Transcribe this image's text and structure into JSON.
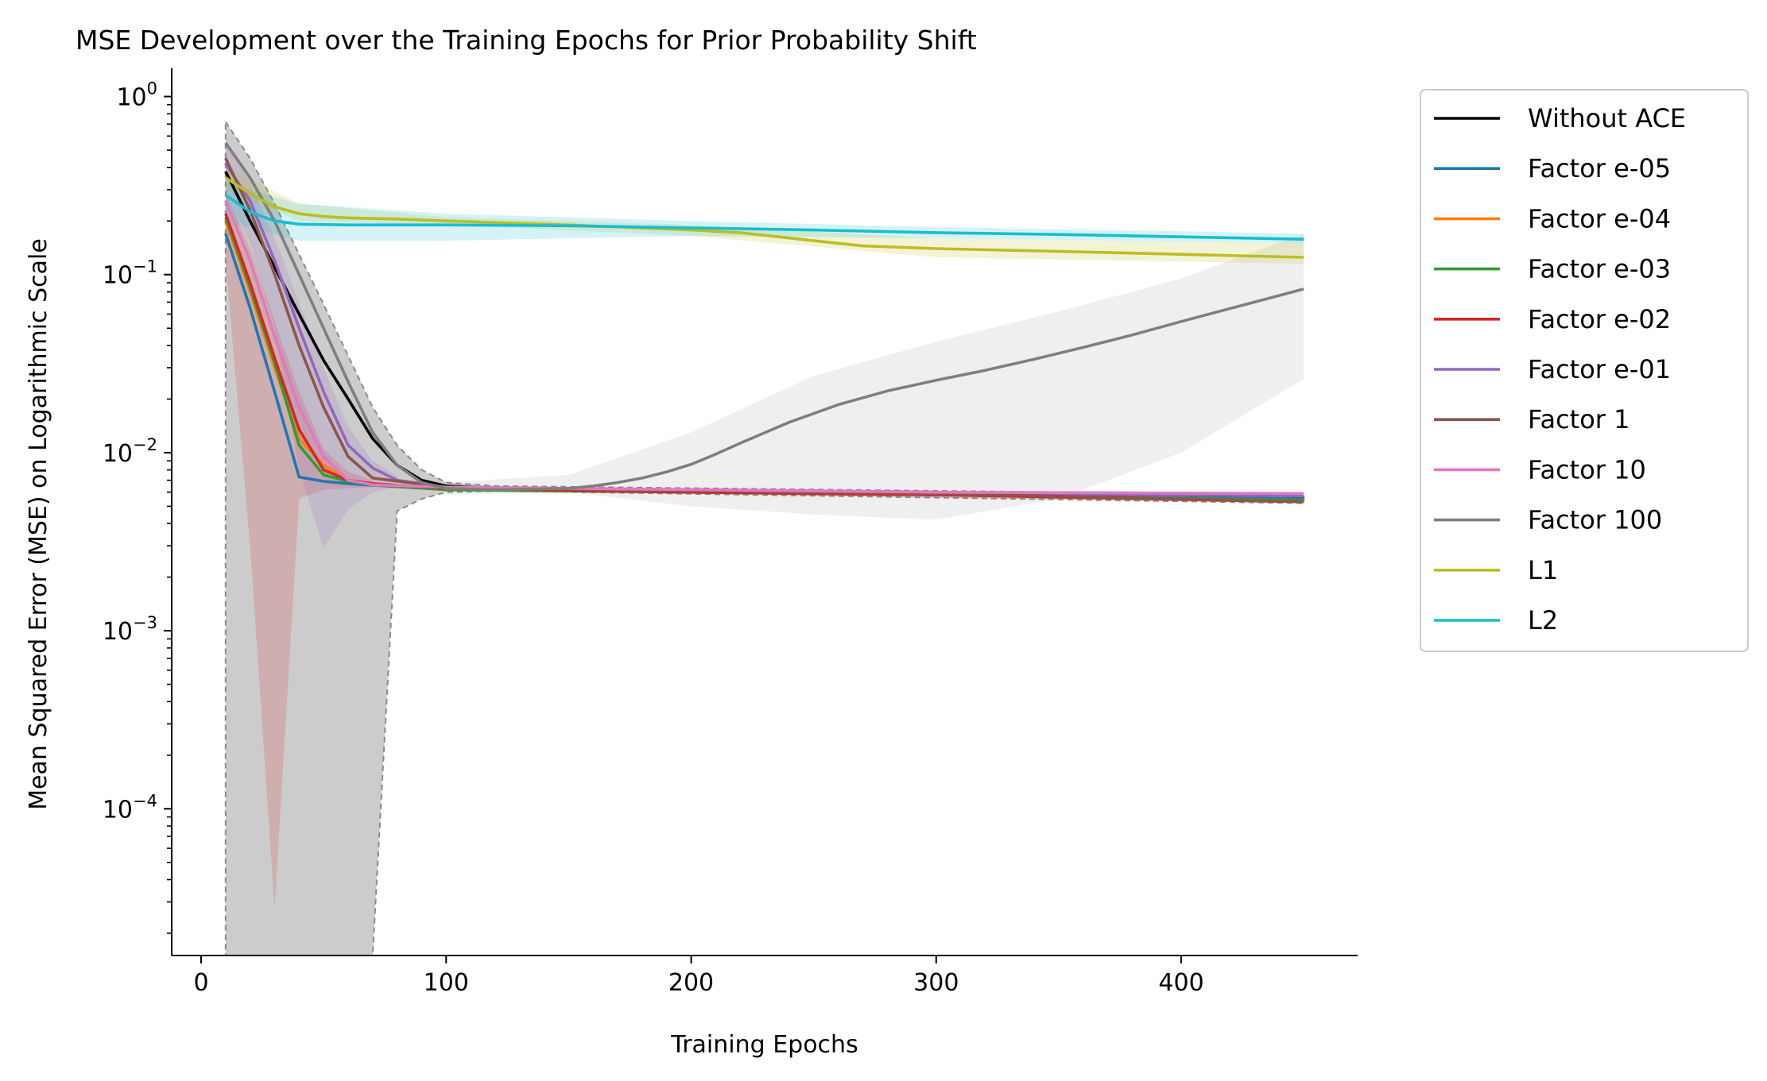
{
  "chart_data": {
    "type": "line",
    "title": "MSE Development over the Training Epochs for Prior Probability Shift",
    "xlabel": "Training Epochs",
    "ylabel": "Mean Squared Error (MSE) on Logarithmic Scale",
    "xlim": [
      -12,
      472
    ],
    "ylim": [
      1.5e-05,
      1.3
    ],
    "yscale": "log",
    "grid": false,
    "legend_position": "outside-right",
    "x_ticks": [
      0,
      100,
      200,
      300,
      400
    ],
    "x_tick_labels": [
      "0",
      "100",
      "200",
      "300",
      "400"
    ],
    "y_ticks": [
      1,
      0.1,
      0.01,
      0.001,
      0.0001
    ],
    "y_tick_labels": [
      {
        "base": "10",
        "exp": "0"
      },
      {
        "base": "10",
        "exp": "−1"
      },
      {
        "base": "10",
        "exp": "−2"
      },
      {
        "base": "10",
        "exp": "−3"
      },
      {
        "base": "10",
        "exp": "−4"
      }
    ],
    "series": [
      {
        "name": "Without ACE",
        "color": "#000000",
        "x": [
          10,
          20,
          30,
          40,
          50,
          60,
          70,
          80,
          90,
          100,
          120,
          150,
          200,
          300,
          400,
          450
        ],
        "y": [
          0.38,
          0.2,
          0.11,
          0.06,
          0.033,
          0.02,
          0.012,
          0.0085,
          0.007,
          0.0065,
          0.0063,
          0.0062,
          0.0061,
          0.0059,
          0.0057,
          0.0056
        ],
        "band": {
          "x": [
            10,
            20,
            30,
            40,
            50,
            60,
            70,
            80,
            90,
            100,
            120,
            450
          ],
          "upper": [
            0.72,
            0.45,
            0.25,
            0.13,
            0.068,
            0.035,
            0.018,
            0.011,
            0.008,
            0.0068,
            0.0065,
            0.0058
          ],
          "lower": [
            1.5e-05,
            1.5e-05,
            1.5e-05,
            1.5e-05,
            1.5e-05,
            1.5e-05,
            1.5e-05,
            0.0047,
            0.0055,
            0.006,
            0.0061,
            0.0052
          ]
        }
      },
      {
        "name": "Factor e-05",
        "color": "#1f77b4",
        "x": [
          10,
          20,
          30,
          40,
          50,
          60,
          100,
          150,
          200,
          300,
          450
        ],
        "y": [
          0.17,
          0.065,
          0.022,
          0.0073,
          0.0069,
          0.0067,
          0.0062,
          0.0061,
          0.006,
          0.0058,
          0.0055
        ]
      },
      {
        "name": "Factor e-04",
        "color": "#ff7f0e",
        "x": [
          10,
          20,
          30,
          40,
          50,
          60,
          70,
          100,
          200,
          300,
          450
        ],
        "y": [
          0.2,
          0.08,
          0.03,
          0.012,
          0.0085,
          0.007,
          0.0066,
          0.0062,
          0.006,
          0.0058,
          0.0054
        ]
      },
      {
        "name": "Factor e-03",
        "color": "#2ca02c",
        "x": [
          10,
          20,
          30,
          40,
          50,
          60,
          70,
          100,
          200,
          300,
          450
        ],
        "y": [
          0.21,
          0.085,
          0.032,
          0.011,
          0.0075,
          0.0069,
          0.0066,
          0.0062,
          0.006,
          0.0058,
          0.0054
        ]
      },
      {
        "name": "Factor e-02",
        "color": "#d62728",
        "x": [
          10,
          20,
          30,
          40,
          50,
          60,
          70,
          100,
          200,
          300,
          450
        ],
        "y": [
          0.22,
          0.09,
          0.034,
          0.0135,
          0.008,
          0.007,
          0.0067,
          0.0063,
          0.006,
          0.0058,
          0.0053
        ],
        "band": {
          "x": [
            10,
            20,
            30,
            40,
            50,
            60,
            70
          ],
          "upper": [
            0.3,
            0.14,
            0.055,
            0.022,
            0.0105,
            0.0078,
            0.007
          ],
          "lower": [
            0.12,
            0.003,
            2.8e-05,
            0.0055,
            0.0062,
            0.0063,
            0.0064
          ]
        }
      },
      {
        "name": "Factor e-01",
        "color": "#9467bd",
        "x": [
          10,
          20,
          30,
          40,
          50,
          60,
          70,
          80,
          100,
          200,
          300,
          450
        ],
        "y": [
          0.42,
          0.26,
          0.12,
          0.05,
          0.022,
          0.011,
          0.0082,
          0.007,
          0.0064,
          0.0062,
          0.006,
          0.0057
        ],
        "band": {
          "x": [
            10,
            20,
            30,
            40,
            50,
            60,
            70,
            80
          ],
          "upper": [
            0.55,
            0.33,
            0.16,
            0.07,
            0.03,
            0.014,
            0.009,
            0.0074
          ],
          "lower": [
            0.3,
            0.15,
            0.05,
            0.008,
            0.0029,
            0.0048,
            0.006,
            0.0064
          ]
        }
      },
      {
        "name": "Factor 1",
        "color": "#8c564b",
        "x": [
          10,
          20,
          30,
          40,
          50,
          60,
          70,
          100,
          200,
          300,
          450
        ],
        "y": [
          0.45,
          0.23,
          0.1,
          0.04,
          0.018,
          0.0095,
          0.0072,
          0.0064,
          0.0061,
          0.0059,
          0.0053
        ]
      },
      {
        "name": "Factor 10",
        "color": "#e377c2",
        "x": [
          10,
          20,
          30,
          40,
          50,
          60,
          70,
          100,
          200,
          300,
          450
        ],
        "y": [
          0.26,
          0.12,
          0.045,
          0.018,
          0.0095,
          0.007,
          0.0066,
          0.0064,
          0.0062,
          0.006,
          0.0059
        ]
      },
      {
        "name": "Factor 100",
        "color": "#7f7f7f",
        "x": [
          10,
          20,
          30,
          40,
          50,
          60,
          70,
          80,
          90,
          100,
          120,
          150,
          160,
          170,
          180,
          190,
          200,
          210,
          220,
          240,
          260,
          280,
          300,
          320,
          340,
          360,
          380,
          400,
          420,
          450
        ],
        "y": [
          0.55,
          0.35,
          0.2,
          0.1,
          0.05,
          0.025,
          0.013,
          0.0085,
          0.0068,
          0.0063,
          0.0062,
          0.0063,
          0.0065,
          0.0068,
          0.0072,
          0.0078,
          0.0086,
          0.0098,
          0.0113,
          0.0148,
          0.0186,
          0.0222,
          0.0255,
          0.029,
          0.0335,
          0.039,
          0.0458,
          0.0545,
          0.0645,
          0.083
        ],
        "band": {
          "x": [
            100,
            150,
            200,
            250,
            300,
            350,
            400,
            450
          ],
          "upper": [
            0.0068,
            0.0075,
            0.013,
            0.027,
            0.042,
            0.062,
            0.095,
            0.17
          ],
          "lower": [
            0.0058,
            0.006,
            0.005,
            0.0045,
            0.0042,
            0.0055,
            0.01,
            0.026
          ]
        }
      },
      {
        "name": "L1",
        "color": "#bcbd22",
        "x": [
          10,
          20,
          30,
          40,
          50,
          60,
          80,
          100,
          150,
          200,
          220,
          250,
          270,
          300,
          350,
          400,
          450
        ],
        "y": [
          0.35,
          0.285,
          0.24,
          0.22,
          0.212,
          0.208,
          0.205,
          0.2,
          0.19,
          0.178,
          0.172,
          0.155,
          0.145,
          0.14,
          0.135,
          0.13,
          0.125
        ],
        "band": {
          "x": [
            10,
            40,
            100,
            200,
            300,
            450
          ],
          "upper": [
            0.4,
            0.25,
            0.21,
            0.19,
            0.16,
            0.15
          ],
          "lower": [
            0.3,
            0.2,
            0.19,
            0.165,
            0.125,
            0.115
          ]
        }
      },
      {
        "name": "L2",
        "color": "#17becf",
        "x": [
          10,
          20,
          30,
          40,
          60,
          100,
          150,
          200,
          250,
          300,
          350,
          400,
          450
        ],
        "y": [
          0.28,
          0.225,
          0.2,
          0.192,
          0.19,
          0.19,
          0.188,
          0.183,
          0.178,
          0.172,
          0.168,
          0.163,
          0.158
        ],
        "band": {
          "x": [
            10,
            40,
            100,
            200,
            300,
            450
          ],
          "upper": [
            0.33,
            0.25,
            0.22,
            0.2,
            0.185,
            0.17
          ],
          "lower": [
            0.2,
            0.155,
            0.155,
            0.165,
            0.16,
            0.15
          ]
        }
      }
    ]
  }
}
